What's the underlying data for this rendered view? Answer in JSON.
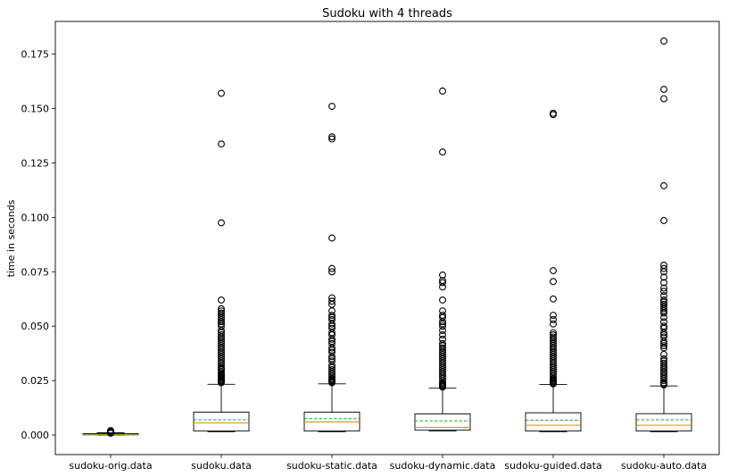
{
  "chart_data": {
    "type": "boxplot",
    "title": "Sudoku with 4 threads",
    "xlabel": "",
    "ylabel": "time in seconds",
    "ylim": [
      -0.009,
      0.19
    ],
    "yticks": [
      0.0,
      0.025,
      0.05,
      0.075,
      0.1,
      0.125,
      0.15,
      0.175
    ],
    "ytick_labels": [
      "0.000",
      "0.025",
      "0.050",
      "0.075",
      "0.100",
      "0.125",
      "0.150",
      "0.175"
    ],
    "categories": [
      "sudoku-orig.data",
      "sudoku.data",
      "sudoku-static.data",
      "sudoku-dynamic.data",
      "sudoku-guided.data",
      "sudoku-auto.data"
    ],
    "colors": {
      "median": "#ff7f0e",
      "mean": "#2ca02c",
      "box": "#000000",
      "background": "#ffffff"
    },
    "series": [
      {
        "name": "sudoku-orig.data",
        "whislo": 0.0,
        "q1": 0.0001,
        "med": 0.0002,
        "mean": 0.0003,
        "q3": 0.0006,
        "whishi": 0.001,
        "fliers": [
          0.0008,
          0.001,
          0.0012,
          0.0014,
          0.0016,
          0.0018,
          0.002
        ]
      },
      {
        "name": "sudoku.data",
        "whislo": 0.0015,
        "q1": 0.0018,
        "med": 0.0055,
        "mean": 0.007,
        "q3": 0.0105,
        "whishi": 0.0233,
        "fliers": [
          0.024,
          0.0245,
          0.025,
          0.0255,
          0.026,
          0.0265,
          0.027,
          0.0275,
          0.028,
          0.029,
          0.03,
          0.0305,
          0.031,
          0.032,
          0.033,
          0.034,
          0.035,
          0.036,
          0.037,
          0.038,
          0.039,
          0.04,
          0.041,
          0.042,
          0.043,
          0.044,
          0.045,
          0.046,
          0.047,
          0.048,
          0.05,
          0.051,
          0.052,
          0.053,
          0.054,
          0.055,
          0.056,
          0.057,
          0.058,
          0.062,
          0.0975,
          0.1337,
          0.157
        ]
      },
      {
        "name": "sudoku-static.data",
        "whislo": 0.0015,
        "q1": 0.0018,
        "med": 0.006,
        "mean": 0.0075,
        "q3": 0.0105,
        "whishi": 0.0235,
        "fliers": [
          0.024,
          0.0245,
          0.025,
          0.0255,
          0.026,
          0.027,
          0.028,
          0.029,
          0.03,
          0.031,
          0.032,
          0.034,
          0.035,
          0.036,
          0.038,
          0.039,
          0.04,
          0.042,
          0.043,
          0.044,
          0.046,
          0.047,
          0.049,
          0.05,
          0.051,
          0.053,
          0.054,
          0.055,
          0.057,
          0.06,
          0.0615,
          0.063,
          0.075,
          0.0765,
          0.0905,
          0.136,
          0.137,
          0.151
        ]
      },
      {
        "name": "sudoku-dynamic.data",
        "whislo": 0.0018,
        "q1": 0.0022,
        "med": 0.0035,
        "mean": 0.0065,
        "q3": 0.0097,
        "whishi": 0.0215,
        "fliers": [
          0.022,
          0.0225,
          0.023,
          0.0235,
          0.024,
          0.025,
          0.026,
          0.027,
          0.028,
          0.029,
          0.03,
          0.031,
          0.032,
          0.033,
          0.034,
          0.035,
          0.036,
          0.037,
          0.038,
          0.039,
          0.04,
          0.041,
          0.042,
          0.044,
          0.046,
          0.048,
          0.05,
          0.051,
          0.052,
          0.054,
          0.055,
          0.057,
          0.062,
          0.068,
          0.07,
          0.071,
          0.0735,
          0.13,
          0.158
        ]
      },
      {
        "name": "sudoku-guided.data",
        "whislo": 0.0015,
        "q1": 0.0018,
        "med": 0.0045,
        "mean": 0.0068,
        "q3": 0.0102,
        "whishi": 0.0232,
        "fliers": [
          0.0235,
          0.024,
          0.0245,
          0.025,
          0.0255,
          0.026,
          0.027,
          0.028,
          0.029,
          0.03,
          0.031,
          0.032,
          0.033,
          0.034,
          0.035,
          0.036,
          0.037,
          0.038,
          0.039,
          0.04,
          0.041,
          0.042,
          0.043,
          0.044,
          0.045,
          0.046,
          0.047,
          0.051,
          0.053,
          0.055,
          0.0625,
          0.0705,
          0.0755,
          0.1472,
          0.1478
        ]
      },
      {
        "name": "sudoku-auto.data",
        "whislo": 0.0015,
        "q1": 0.0018,
        "med": 0.0045,
        "mean": 0.007,
        "q3": 0.0098,
        "whishi": 0.0225,
        "fliers": [
          0.023,
          0.0235,
          0.024,
          0.025,
          0.026,
          0.027,
          0.028,
          0.029,
          0.03,
          0.031,
          0.032,
          0.033,
          0.034,
          0.035,
          0.037,
          0.04,
          0.041,
          0.042,
          0.043,
          0.045,
          0.046,
          0.047,
          0.049,
          0.05,
          0.052,
          0.054,
          0.056,
          0.057,
          0.058,
          0.059,
          0.06,
          0.061,
          0.062,
          0.064,
          0.066,
          0.0675,
          0.07,
          0.0725,
          0.075,
          0.0765,
          0.078,
          0.0985,
          0.1145,
          0.1545,
          0.1588,
          0.181
        ]
      }
    ]
  }
}
